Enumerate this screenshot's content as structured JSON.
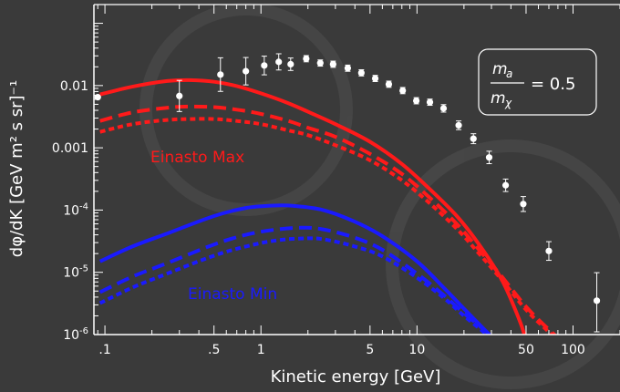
{
  "chart_data": {
    "type": "line",
    "xlabel": "Kinetic energy [GeV]",
    "ylabel": "dφ/dK [GeV m² s sr]⁻¹",
    "xscale": "log",
    "yscale": "log",
    "xlim": [
      0.085,
      200
    ],
    "ylim": [
      1e-06,
      0.2
    ],
    "x_tick_labels": [
      {
        "value": 0.1,
        "label": ".1"
      },
      {
        "value": 0.5,
        "label": ".5"
      },
      {
        "value": 1,
        "label": "1"
      },
      {
        "value": 5,
        "label": "5"
      },
      {
        "value": 10,
        "label": "10"
      },
      {
        "value": 50,
        "label": "50"
      },
      {
        "value": 100,
        "label": "100"
      }
    ],
    "y_tick_labels": [
      {
        "value": 0.01,
        "label": "0.01"
      },
      {
        "value": 0.001,
        "label": "0.001"
      },
      {
        "value": 0.0001,
        "label": "10",
        "exp": "-4"
      },
      {
        "value": 1e-05,
        "label": "10",
        "exp": "-5"
      },
      {
        "value": 1e-06,
        "label": "10",
        "exp": "-6"
      }
    ],
    "annotation": {
      "numerator": "m",
      "numerator_sub": "a",
      "denominator": "m",
      "denominator_sub": "χ",
      "value": "= 0.5"
    },
    "colors": {
      "max": "#ff1a1a",
      "min": "#1a1aff",
      "data": "#ffffff",
      "background": "#3a3a3a"
    },
    "series": [
      {
        "name": "Einasto Max",
        "color": "#ff1a1a",
        "dash": "solid",
        "x": [
          0.093,
          0.15,
          0.25,
          0.35,
          0.5,
          0.7,
          1,
          1.5,
          2,
          3,
          5,
          8,
          12,
          18,
          25,
          35,
          45,
          50,
          52
        ],
        "y": [
          0.0072,
          0.0096,
          0.0118,
          0.0122,
          0.0115,
          0.0098,
          0.0075,
          0.0052,
          0.0038,
          0.0024,
          0.00125,
          0.00055,
          0.00022,
          8e-05,
          2.8e-05,
          7.5e-06,
          1.8e-06,
          8e-07,
          5e-07
        ]
      },
      {
        "name": "",
        "color": "#ff1a1a",
        "dash": "long",
        "x": [
          0.093,
          0.15,
          0.25,
          0.35,
          0.5,
          0.7,
          1,
          1.5,
          2,
          3,
          5,
          8,
          12,
          18,
          25,
          35,
          50,
          70,
          90
        ],
        "y": [
          0.0027,
          0.0037,
          0.0044,
          0.0046,
          0.0045,
          0.0041,
          0.0035,
          0.0027,
          0.0021,
          0.0015,
          0.0008,
          0.00038,
          0.00016,
          6e-05,
          2.3e-05,
          8.5e-06,
          2.8e-06,
          1.2e-06,
          7e-07
        ]
      },
      {
        "name": "",
        "color": "#ff1a1a",
        "dash": "short",
        "x": [
          0.093,
          0.15,
          0.25,
          0.35,
          0.5,
          0.7,
          1,
          1.5,
          2,
          3,
          5,
          8,
          12,
          18,
          25,
          35,
          50,
          70,
          90
        ],
        "y": [
          0.0018,
          0.0024,
          0.0028,
          0.0029,
          0.0029,
          0.0027,
          0.0024,
          0.0019,
          0.0016,
          0.0011,
          0.00063,
          0.0003,
          0.00013,
          5e-05,
          2e-05,
          7.5e-06,
          2.5e-06,
          1.1e-06,
          6e-07
        ]
      },
      {
        "name": "Einasto Min",
        "color": "#1a1aff",
        "dash": "solid",
        "x": [
          0.093,
          0.15,
          0.25,
          0.5,
          0.8,
          1.2,
          1.6,
          2.5,
          4,
          6,
          10,
          15,
          20,
          28,
          33
        ],
        "y": [
          1.5e-05,
          2.6e-05,
          4.2e-05,
          8e-05,
          0.000108,
          0.000118,
          0.000117,
          0.0001,
          6.5e-05,
          3.8e-05,
          1.5e-05,
          5.5e-06,
          2.6e-06,
          1.1e-06,
          7e-07
        ]
      },
      {
        "name": "",
        "color": "#1a1aff",
        "dash": "long",
        "x": [
          0.093,
          0.15,
          0.25,
          0.5,
          0.8,
          1.2,
          1.8,
          2.5,
          4,
          6,
          10,
          15,
          20,
          28,
          33
        ],
        "y": [
          4.8e-06,
          8.5e-06,
          1.4e-05,
          2.8e-05,
          4e-05,
          4.8e-05,
          5.2e-05,
          4.9e-05,
          3.6e-05,
          2.3e-05,
          9.5e-06,
          4.2e-06,
          2.2e-06,
          1.1e-06,
          7e-07
        ]
      },
      {
        "name": "",
        "color": "#1a1aff",
        "dash": "short",
        "x": [
          0.093,
          0.15,
          0.25,
          0.5,
          0.8,
          1.2,
          1.8,
          2.5,
          4,
          6,
          10,
          15,
          20,
          28,
          33
        ],
        "y": [
          3.2e-06,
          5.7e-06,
          9.5e-06,
          1.85e-05,
          2.6e-05,
          3.2e-05,
          3.5e-05,
          3.4e-05,
          2.6e-05,
          1.8e-05,
          8.2e-06,
          3.8e-06,
          2e-06,
          1e-06,
          7e-07
        ]
      }
    ],
    "data_points": [
      {
        "x": 0.09,
        "y": 0.0065
      },
      {
        "x": 0.3,
        "y": 0.0068,
        "err": 0.25
      },
      {
        "x": 0.55,
        "y": 0.015,
        "err": 0.27
      },
      {
        "x": 0.8,
        "y": 0.017,
        "err": 0.22
      },
      {
        "x": 1.05,
        "y": 0.021,
        "err": 0.15
      },
      {
        "x": 1.3,
        "y": 0.024,
        "err": 0.13
      },
      {
        "x": 1.55,
        "y": 0.022,
        "err": 0.1
      },
      {
        "x": 1.95,
        "y": 0.027,
        "err": 0.05
      },
      {
        "x": 2.4,
        "y": 0.023,
        "err": 0.05
      },
      {
        "x": 2.9,
        "y": 0.022,
        "err": 0.05
      },
      {
        "x": 3.6,
        "y": 0.019,
        "err": 0.05
      },
      {
        "x": 4.4,
        "y": 0.016,
        "err": 0.05
      },
      {
        "x": 5.4,
        "y": 0.013,
        "err": 0.05
      },
      {
        "x": 6.6,
        "y": 0.0105,
        "err": 0.05
      },
      {
        "x": 8.1,
        "y": 0.0083,
        "err": 0.05
      },
      {
        "x": 9.9,
        "y": 0.0057,
        "err": 0.05
      },
      {
        "x": 12.1,
        "y": 0.0054,
        "err": 0.05
      },
      {
        "x": 14.8,
        "y": 0.0043,
        "err": 0.06
      },
      {
        "x": 18.5,
        "y": 0.0023,
        "err": 0.07
      },
      {
        "x": 23,
        "y": 0.0014,
        "err": 0.08
      },
      {
        "x": 29,
        "y": 0.0007,
        "err": 0.1
      },
      {
        "x": 37,
        "y": 0.00025,
        "err": 0.1
      },
      {
        "x": 48,
        "y": 0.000125,
        "err": 0.12
      },
      {
        "x": 70,
        "y": 2.2e-05,
        "err": 0.15
      },
      {
        "x": 142,
        "y": 3.5e-06,
        "errUp": 0.45,
        "errDn": 0.5
      }
    ]
  }
}
